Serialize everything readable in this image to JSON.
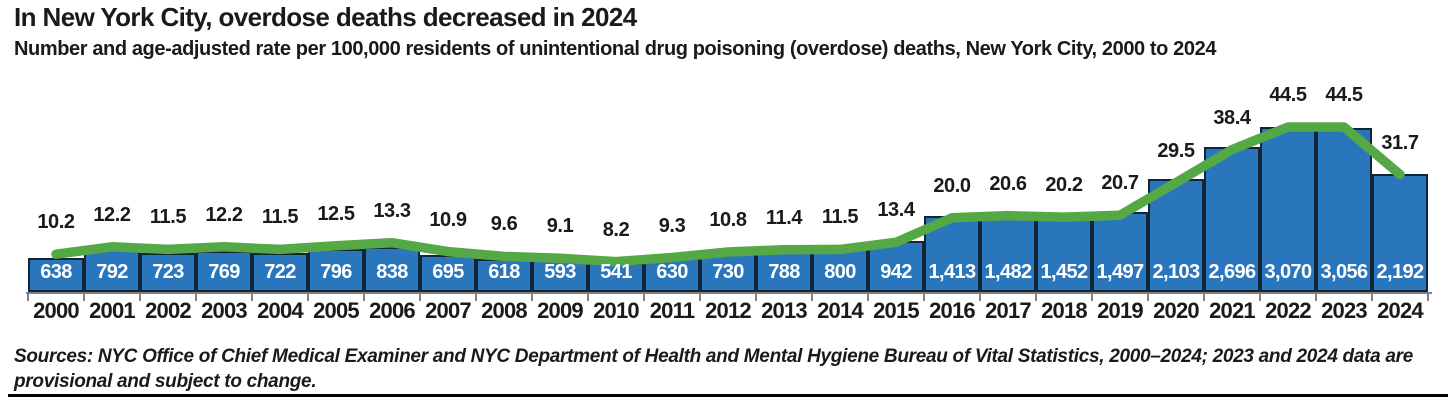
{
  "header": {
    "title": "In New York City, overdose deaths decreased in 2024",
    "subtitle": "Number and age-adjusted rate per 100,000 residents of unintentional drug poisoning (overdose) deaths, New York City, 2000 to 2024"
  },
  "chart_data": {
    "type": "bar",
    "title": "In New York City, overdose deaths decreased in 2024",
    "subtitle": "Number and age-adjusted rate per 100,000 residents of unintentional drug poisoning (overdose) deaths, New York City, 2000 to 2024",
    "categories": [
      "2000",
      "2001",
      "2002",
      "2003",
      "2004",
      "2005",
      "2006",
      "2007",
      "2008",
      "2009",
      "2010",
      "2011",
      "2012",
      "2013",
      "2014",
      "2015",
      "2016",
      "2017",
      "2018",
      "2019",
      "2020",
      "2021",
      "2022",
      "2023",
      "2024"
    ],
    "series": [
      {
        "name": "Number of unintentional drug poisoning (overdose) deaths",
        "type": "bar",
        "color": "#2a76bc",
        "border_color": "#102636",
        "values": [
          638,
          792,
          723,
          769,
          722,
          796,
          838,
          695,
          618,
          593,
          541,
          630,
          730,
          788,
          800,
          942,
          1413,
          1482,
          1452,
          1497,
          2103,
          2696,
          3070,
          3056,
          2192
        ],
        "labels": [
          "638",
          "792",
          "723",
          "769",
          "722",
          "796",
          "838",
          "695",
          "618",
          "593",
          "541",
          "630",
          "730",
          "788",
          "800",
          "942",
          "1,413",
          "1,482",
          "1,452",
          "1,497",
          "2,103",
          "2,696",
          "3,070",
          "3,056",
          "2,192"
        ]
      },
      {
        "name": "Age-adjusted rate per 100,000 residents",
        "type": "line",
        "color": "#55a846",
        "values": [
          10.2,
          12.2,
          11.5,
          12.2,
          11.5,
          12.5,
          13.3,
          10.9,
          9.6,
          9.1,
          8.2,
          9.3,
          10.8,
          11.4,
          11.5,
          13.4,
          20.0,
          20.6,
          20.2,
          20.7,
          29.5,
          38.4,
          44.5,
          44.5,
          31.7
        ],
        "labels": [
          "10.2",
          "12.2",
          "11.5",
          "12.2",
          "11.5",
          "12.5",
          "13.3",
          "10.9",
          "9.6",
          "9.1",
          "8.2",
          "9.3",
          "10.8",
          "11.4",
          "11.5",
          "13.4",
          "20.0",
          "20.6",
          "20.2",
          "20.7",
          "29.5",
          "38.4",
          "44.5",
          "44.5",
          "31.7"
        ]
      }
    ],
    "bar_axis_max": 3070,
    "rate_axis_max": 44.5,
    "xlabel": "",
    "ylabel": "",
    "legend_position": "none",
    "grid": false,
    "axis_color": "#7f7f7f",
    "value_label_color": "#ffffff",
    "text_color": "#1a1a1a"
  },
  "footer": {
    "sources": "Sources: NYC Office of Chief Medical Examiner and NYC Department of Health and Mental Hygiene Bureau of Vital Statistics, 2000–2024; 2023 and 2024 data are provisional and subject to change."
  }
}
